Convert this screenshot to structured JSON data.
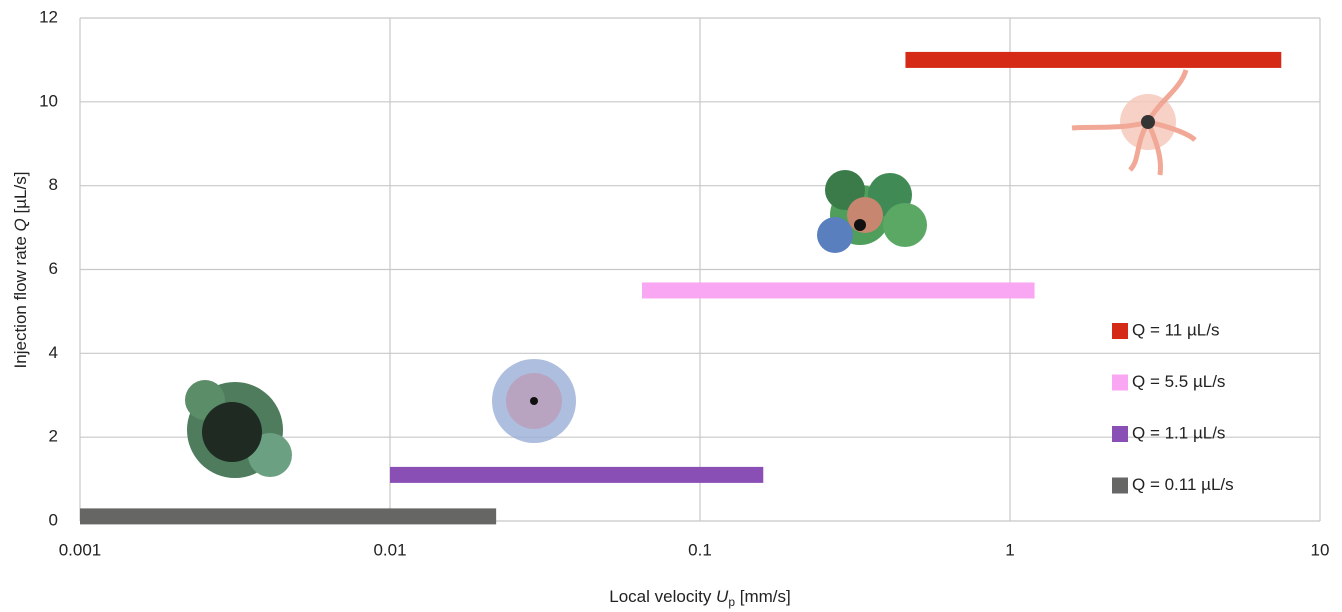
{
  "chart_data": {
    "type": "range-bar",
    "xlabel": [
      "Local velocity ",
      "U",
      "p",
      " [mm/s]"
    ],
    "ylabel": [
      "Injection flow rate ",
      "Q",
      " [µL/s]"
    ],
    "xscale": "log",
    "xlim": [
      0.001,
      10
    ],
    "xticks": [
      0.001,
      0.01,
      0.1,
      1,
      10
    ],
    "ylim": [
      0,
      12
    ],
    "yticks": [
      0,
      2,
      4,
      6,
      8,
      10,
      12
    ],
    "grid": true,
    "series": [
      {
        "name": "Q = 11 µL/s",
        "color": "#d42a16",
        "y": 11,
        "x": [
          0.46,
          7.5
        ]
      },
      {
        "name": "Q = 5.5 µL/s",
        "color": "#f9a6f3",
        "y": 5.5,
        "x": [
          0.065,
          1.2
        ]
      },
      {
        "name": "Q = 1.1 µL/s",
        "color": "#8a4fb5",
        "y": 1.1,
        "x": [
          0.01,
          0.16
        ]
      },
      {
        "name": "Q = 0.11 µL/s",
        "color": "#666764",
        "y": 0.11,
        "x": [
          0.001,
          0.022
        ]
      }
    ]
  }
}
